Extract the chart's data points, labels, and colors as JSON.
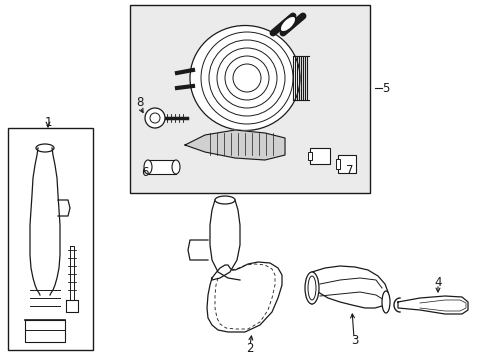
{
  "background_color": "#ffffff",
  "line_color": "#1a1a1a",
  "box_fill": "#ebebeb",
  "fig_width": 4.89,
  "fig_height": 3.6,
  "dpi": 100
}
